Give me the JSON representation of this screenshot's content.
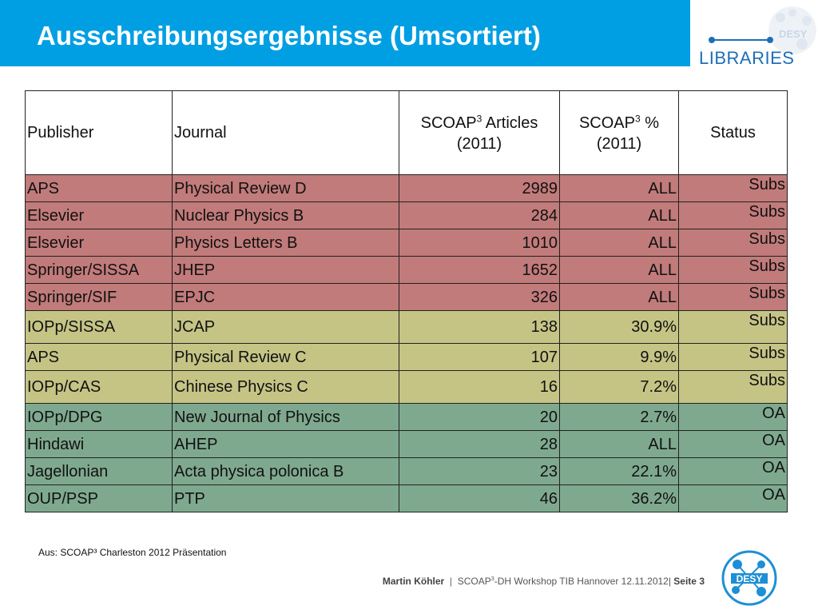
{
  "header": {
    "title": "Ausschreibungsergebnisse (Umsortiert)",
    "logo_text": "LIBRARIES",
    "logo_brand": "DESY"
  },
  "table": {
    "columns": [
      {
        "main": "Publisher",
        "sup": "",
        "rest": "",
        "sub": ""
      },
      {
        "main": "Journal",
        "sup": "",
        "rest": "",
        "sub": ""
      },
      {
        "main": "SCOAP",
        "sup": "3",
        "rest": " Articles",
        "sub": "(2011)"
      },
      {
        "main": "SCOAP",
        "sup": "3",
        "rest": " %",
        "sub": "(2011)"
      },
      {
        "main": "Status",
        "sup": "",
        "rest": "",
        "sub": ""
      }
    ],
    "rows": [
      {
        "publisher": "APS",
        "journal": "Physical Review D",
        "articles": "2989",
        "percent": "ALL",
        "status": "Subs"
      },
      {
        "publisher": "Elsevier",
        "journal": "Nuclear Physics B",
        "articles": "284",
        "percent": "ALL",
        "status": "Subs"
      },
      {
        "publisher": "Elsevier",
        "journal": "Physics Letters B",
        "articles": "1010",
        "percent": "ALL",
        "status": "Subs"
      },
      {
        "publisher": "Springer/SISSA",
        "journal": "JHEP",
        "articles": "1652",
        "percent": "ALL",
        "status": "Subs"
      },
      {
        "publisher": "Springer/SIF",
        "journal": "EPJC",
        "articles": "326",
        "percent": "ALL",
        "status": "Subs"
      },
      {
        "publisher": "IOPp/SISSA",
        "journal": "JCAP",
        "articles": "138",
        "percent": "30.9%",
        "status": "Subs"
      },
      {
        "publisher": "APS",
        "journal": "Physical Review C",
        "articles": "107",
        "percent": "9.9%",
        "status": "Subs"
      },
      {
        "publisher": "IOPp/CAS",
        "journal": "Chinese Physics C",
        "articles": "16",
        "percent": "7.2%",
        "status": "Subs"
      },
      {
        "publisher": "IOPp/DPG",
        "journal": "New Journal of Physics",
        "articles": "20",
        "percent": "2.7%",
        "status": "OA"
      },
      {
        "publisher": "Hindawi",
        "journal": "AHEP",
        "articles": "28",
        "percent": "ALL",
        "status": "OA"
      },
      {
        "publisher": "Jagellonian",
        "journal": "Acta physica polonica B",
        "articles": "23",
        "percent": "22.1%",
        "status": "OA"
      },
      {
        "publisher": "OUP/PSP",
        "journal": "PTP",
        "articles": "46",
        "percent": "36.2%",
        "status": "OA"
      }
    ]
  },
  "colors": {
    "header_blue": "#009fe3",
    "subs_all": "#c17b7a",
    "subs_partial": "#c5c485",
    "open_access": "#7fa98f"
  },
  "source_note": "Aus: SCOAP³ Charleston 2012 Präsentation",
  "footer": {
    "author": "Martin Köhler",
    "event_prefix": "SCOAP",
    "event_sup": "3",
    "event_rest": "-DH Workshop TIB Hannover 12.11.2012|",
    "page": "Seite 3"
  }
}
